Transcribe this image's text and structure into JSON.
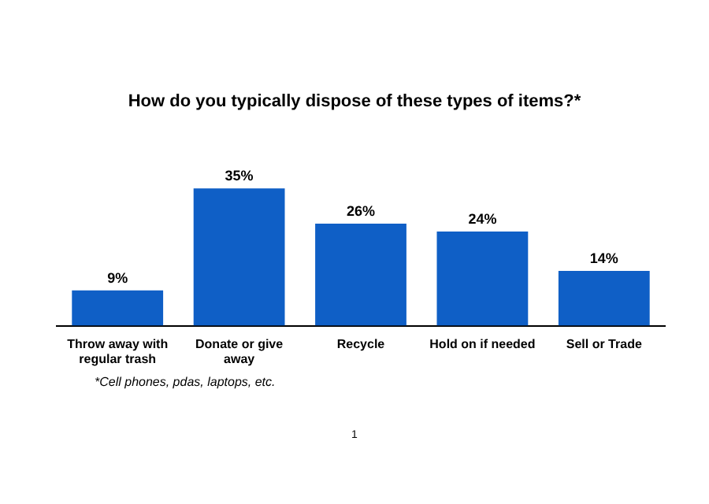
{
  "chart_data": {
    "type": "bar",
    "title": "How do you typically dispose of these types of items?*",
    "categories": [
      "Throw away with regular trash",
      "Donate or give away",
      "Recycle",
      "Hold on if needed",
      "Sell or Trade"
    ],
    "values": [
      9,
      35,
      26,
      24,
      14
    ],
    "value_labels": [
      "9%",
      "35%",
      "26%",
      "24%",
      "14%"
    ],
    "color": "#0f5fc6",
    "relative": false,
    "grid": false,
    "legend": false,
    "annotations": [
      "*Cell phones, pdas, laptops, etc.",
      "1"
    ]
  }
}
